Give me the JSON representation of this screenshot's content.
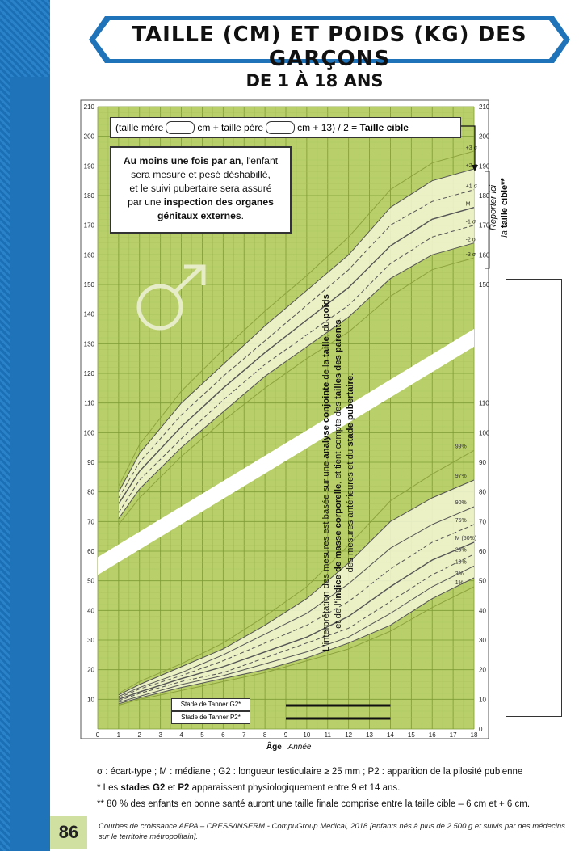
{
  "header": {
    "title": "TAILLE (CM) ET POIDS (KG) DES GARÇONS",
    "subtitle": "DE 1 À 18 ANS"
  },
  "formula": {
    "prefix": "(taille mère",
    "mid": "cm + taille père",
    "suffix": "cm + 13) / 2 =",
    "bold": "Taille cible"
  },
  "info_box": {
    "l1b": "Au moins une fois par an",
    "l1": ", l'enfant",
    "l2": "sera mesuré et pesé déshabillé,",
    "l3": "et le suivi pubertaire sera assuré",
    "l4a": "par une ",
    "l4b": "inspection des organes",
    "l5b": "génitaux externes",
    "l5": "."
  },
  "report": {
    "line1": "Reporter ici",
    "line2a": "la ",
    "line2b": "taille cible**"
  },
  "right_note": {
    "a": "L'interprétation des mesures est basée sur une ",
    "b": "analyse conjointe",
    "c": " de la ",
    "d": "taille",
    "e": ", du ",
    "f": "poids",
    "g": "et de ",
    "h": "l'indice de masse corporelle",
    "i": ", et tient compte des ",
    "j": "tailles des parents",
    "k": ",",
    "l": "des mesures antérieures et du ",
    "m": "stade pubertaire",
    "n": "."
  },
  "tanner": {
    "g2": "Stade de Tanner G2*",
    "p2": "Stade de Tanner P2*"
  },
  "axis": {
    "x_label": "Âge",
    "x_unit": "Année"
  },
  "notes": {
    "n1": "σ : écart-type ; M : médiane ; G2 : longueur testiculaire ≥ 25 mm ; P2 : apparition de la pilosité pubienne",
    "n2a": "* Les ",
    "n2b": "stades G2",
    "n2c": " et ",
    "n2d": "P2",
    "n2e": " apparaissent physiologiquement entre 9 et 14 ans.",
    "n3": "** 80 % des enfants en bonne santé auront une taille finale comprise entre la taille cible – 6 cm et + 6 cm."
  },
  "footer": {
    "page": "86",
    "credit": "Courbes de croissance AFPA – CRESS/INSERM - CompuGroup Medical, 2018 [enfants nés à plus de 2 500 g et suivis par des médecins sur le territoire métropolitain]."
  },
  "colors": {
    "grid_bg": "#b9d06a",
    "band_fill": "#f1f4cf",
    "accent_blue": "#1e73b9"
  },
  "chart_data": {
    "type": "line",
    "x_range": [
      0,
      18
    ],
    "x_ticks": [
      0,
      1,
      2,
      3,
      4,
      5,
      6,
      7,
      8,
      9,
      10,
      11,
      12,
      13,
      14,
      15,
      16,
      17,
      18
    ],
    "left_axis": {
      "unit": "cm",
      "range": [
        0,
        210
      ],
      "ticks": [
        10,
        20,
        30,
        40,
        50,
        60,
        70,
        80,
        90,
        100,
        110,
        120,
        130,
        140,
        150,
        160,
        170,
        180,
        190,
        200,
        210
      ]
    },
    "right_axis_height": {
      "range": [
        0,
        210
      ],
      "ticks": [
        150,
        160,
        170,
        180,
        190,
        200,
        210
      ]
    },
    "right_axis_weight": {
      "ticks": [
        0,
        10,
        20,
        30,
        40,
        50,
        60,
        70,
        80,
        90,
        100,
        110
      ]
    },
    "height_series": [
      {
        "name": "-3 σ",
        "x": [
          1,
          2,
          4,
          6,
          8,
          10,
          12,
          14,
          16,
          18
        ],
        "y": [
          69,
          78,
          92,
          104,
          115,
          125,
          134,
          146,
          155,
          159
        ]
      },
      {
        "name": "-2 σ",
        "x": [
          1,
          2,
          4,
          6,
          8,
          10,
          12,
          14,
          16,
          18
        ],
        "y": [
          71,
          81,
          95,
          107,
          119,
          129,
          139,
          152,
          160,
          164
        ]
      },
      {
        "name": "-1 σ",
        "x": [
          1,
          2,
          4,
          6,
          8,
          10,
          12,
          14,
          16,
          18
        ],
        "y": [
          73,
          84,
          98,
          111,
          123,
          133,
          143,
          157,
          166,
          170
        ]
      },
      {
        "name": "M",
        "x": [
          1,
          2,
          4,
          6,
          8,
          10,
          12,
          14,
          16,
          18
        ],
        "y": [
          76,
          87,
          102,
          115,
          127,
          138,
          149,
          163,
          172,
          176
        ]
      },
      {
        "name": "+1 σ",
        "x": [
          1,
          2,
          4,
          6,
          8,
          10,
          12,
          14,
          16,
          18
        ],
        "y": [
          78,
          90,
          106,
          119,
          131,
          143,
          155,
          170,
          178,
          182
        ]
      },
      {
        "name": "+2 σ",
        "x": [
          1,
          2,
          4,
          6,
          8,
          10,
          12,
          14,
          16,
          18
        ],
        "y": [
          80,
          93,
          110,
          123,
          136,
          148,
          160,
          176,
          185,
          189
        ]
      },
      {
        "name": "+3 σ",
        "x": [
          1,
          2,
          4,
          6,
          8,
          10,
          12,
          14,
          16,
          18
        ],
        "y": [
          82,
          96,
          114,
          128,
          141,
          153,
          166,
          182,
          191,
          195
        ]
      }
    ],
    "weight_series": [
      {
        "name": "1%",
        "x": [
          1,
          2,
          4,
          6,
          8,
          10,
          12,
          14,
          16,
          18
        ],
        "y": [
          8,
          10,
          13,
          16,
          19,
          23,
          27,
          33,
          41,
          48
        ]
      },
      {
        "name": "3%",
        "x": [
          1,
          2,
          4,
          6,
          8,
          10,
          12,
          14,
          16,
          18
        ],
        "y": [
          8.5,
          10.5,
          14,
          17,
          20,
          24,
          29,
          35,
          44,
          51
        ]
      },
      {
        "name": "10%",
        "x": [
          1,
          2,
          4,
          6,
          8,
          10,
          12,
          14,
          16,
          18
        ],
        "y": [
          9,
          11,
          15,
          18,
          22,
          26,
          31,
          39,
          48,
          55
        ]
      },
      {
        "name": "25%",
        "x": [
          1,
          2,
          4,
          6,
          8,
          10,
          12,
          14,
          16,
          18
        ],
        "y": [
          9.5,
          12,
          16,
          19,
          24,
          29,
          34,
          43,
          52,
          59
        ]
      },
      {
        "name": "M (50%)",
        "x": [
          1,
          2,
          4,
          6,
          8,
          10,
          12,
          14,
          16,
          18
        ],
        "y": [
          10,
          12.5,
          17,
          21,
          26,
          31,
          38,
          48,
          57,
          63
        ]
      },
      {
        "name": "75%",
        "x": [
          1,
          2,
          4,
          6,
          8,
          10,
          12,
          14,
          16,
          18
        ],
        "y": [
          10.5,
          13.5,
          18,
          23,
          29,
          35,
          43,
          54,
          63,
          69
        ]
      },
      {
        "name": "90%",
        "x": [
          1,
          2,
          4,
          6,
          8,
          10,
          12,
          14,
          16,
          18
        ],
        "y": [
          11,
          14,
          19,
          25,
          32,
          39,
          49,
          61,
          69,
          75
        ]
      },
      {
        "name": "97%",
        "x": [
          1,
          2,
          4,
          6,
          8,
          10,
          12,
          14,
          16,
          18
        ],
        "y": [
          11.5,
          15,
          21,
          27,
          35,
          44,
          56,
          70,
          78,
          84
        ]
      },
      {
        "name": "99%",
        "x": [
          1,
          2,
          4,
          6,
          8,
          10,
          12,
          14,
          16,
          18
        ],
        "y": [
          12,
          16,
          22,
          29,
          38,
          48,
          62,
          77,
          86,
          94
        ]
      }
    ],
    "tanner_bars": [
      {
        "name": "Stade de Tanner G2*",
        "range": [
          9,
          14
        ]
      },
      {
        "name": "Stade de Tanner P2*",
        "range": [
          9,
          14
        ]
      }
    ]
  }
}
